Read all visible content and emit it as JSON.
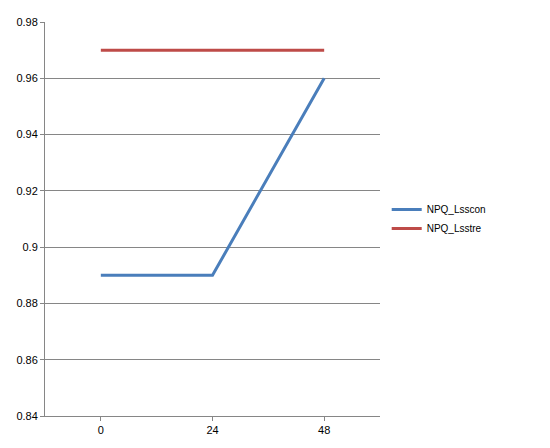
{
  "chart_data": {
    "type": "line",
    "categories": [
      "0",
      "24",
      "48"
    ],
    "series": [
      {
        "name": "NPQ_Lsscon",
        "color": "#4a7ebb",
        "values": [
          0.89,
          0.89,
          0.96
        ]
      },
      {
        "name": "NPQ_Lsstre",
        "color": "#be4b48",
        "values": [
          0.97,
          0.97,
          0.97
        ]
      }
    ],
    "ylim": [
      0.84,
      0.98
    ],
    "yticks": [
      0.84,
      0.86,
      0.88,
      0.9,
      0.92,
      0.94,
      0.96,
      0.98
    ],
    "grid": true,
    "legend": "right"
  }
}
